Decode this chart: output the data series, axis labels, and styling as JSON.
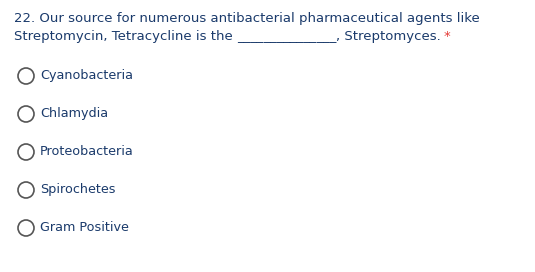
{
  "background_color": "#ffffff",
  "question_line1": "22. Our source for numerous antibacterial pharmaceutical agents like",
  "question_line2_part1": "Streptomycin, Tetracycline is the ",
  "question_line2_blank": "_______________",
  "question_line2_part2": ", Streptomyces.",
  "question_line2_asterisk": "*",
  "options": [
    "Cyanobacteria",
    "Chlamydia",
    "Proteobacteria",
    "Spirochetes",
    "Gram Positive"
  ],
  "text_color": "#1a3a6b",
  "asterisk_color": "#e53935",
  "font_size_question": 9.5,
  "font_size_options": 9.2,
  "circle_color": "#555555"
}
